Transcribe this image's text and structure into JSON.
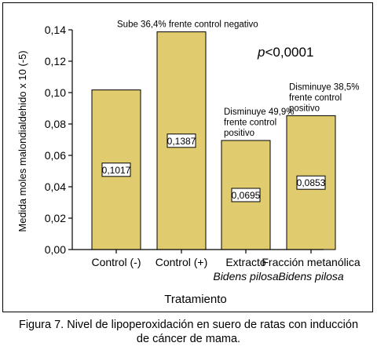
{
  "chart_data": {
    "type": "bar",
    "categories": [
      {
        "line1": "Control (-)",
        "line2": ""
      },
      {
        "line1": "Control (+)",
        "line2": ""
      },
      {
        "line1": "Extracto",
        "line2": "Bidens pilosa"
      },
      {
        "line1": "Fracción metanólica",
        "line2": "Bidens pilosa"
      }
    ],
    "values": [
      0.1017,
      0.1387,
      0.0695,
      0.0853
    ],
    "value_labels": [
      "0,1017",
      "0,1387",
      "0,0695",
      "0,0853"
    ],
    "annotations": [
      {
        "bar": 1,
        "lines": [
          "Sube 36,4% frente control negativo"
        ]
      },
      {
        "bar": 2,
        "lines": [
          "Disminuye 49,9%",
          "frente control",
          "positivo"
        ]
      },
      {
        "bar": 3,
        "lines": [
          "Disminuye 38,5%",
          "frente control",
          "positivo"
        ]
      }
    ],
    "stat_label": {
      "italic": "p",
      "rest": "<0,0001"
    },
    "xlabel": "Tratamiento",
    "ylabel": "Medida moles malondialdehido x 10 (-5)",
    "ylim": [
      0,
      0.14
    ],
    "yticks": [
      0,
      0.02,
      0.04,
      0.06,
      0.08,
      0.1,
      0.12,
      0.14
    ],
    "ytick_labels": [
      "0,00",
      "0,02",
      "0,04",
      "0,06",
      "0,08",
      "0,10",
      "0,12",
      "0,14"
    ],
    "bar_color": "#E0CC6E",
    "grid": false
  },
  "caption": {
    "line1": "Figura 7. Nivel de lipoperoxidación en suero de ratas con inducción",
    "line2": "de cáncer de mama."
  }
}
